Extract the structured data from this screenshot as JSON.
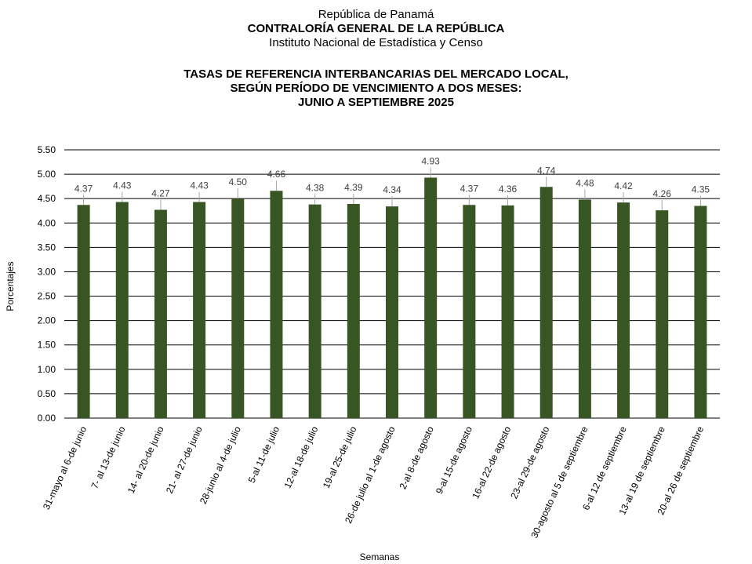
{
  "header": {
    "line1": "República de Panamá",
    "line2": "CONTRALORÍA GENERAL DE LA REPÚBLICA",
    "line3": "Instituto  Nacional de Estadística y Censo"
  },
  "chart_data": {
    "type": "bar",
    "title": [
      "TASAS DE REFERENCIA INTERBANCARIAS DEL MERCADO LOCAL,",
      "SEGÚN PERÍODO DE VENCIMIENTO A DOS MESES:",
      "JUNIO A  SEPTIEMBRE 2025"
    ],
    "xlabel": "Semanas",
    "ylabel": "Porcentajes",
    "ylim": [
      0,
      5.5
    ],
    "yticks": [
      "0.00",
      "0.50",
      "1.00",
      "1.50",
      "2.00",
      "2.50",
      "3.00",
      "3.50",
      "4.00",
      "4.50",
      "5.00",
      "5.50"
    ],
    "grid": true,
    "bar_color": "#375623",
    "categories": [
      "31-mayo al 6-de junio",
      "7- al 13-de junio",
      "14- al 20-de junio",
      "21- al 27-de junio",
      "28-junio al 4-de julio",
      "5-al 11-de julio",
      "12-al 18-de julio",
      "19-al 25-de julio",
      "26-de julio al 1-de agosto",
      "2-al 8-de agosto",
      "9-al 15-de agosto",
      "16-al 22-de agosto",
      "23-al 29-de agosto",
      "30-agosto al 5 de septiembre",
      "6-al 12 de septiembre",
      "13-al 19 de septiembre",
      "20-al 26 de septiembre"
    ],
    "values": [
      4.37,
      4.43,
      4.27,
      4.43,
      4.5,
      4.66,
      4.38,
      4.39,
      4.34,
      4.93,
      4.37,
      4.36,
      4.74,
      4.48,
      4.42,
      4.26,
      4.35
    ],
    "data_labels": [
      "4.37",
      "4.43",
      "4.27",
      "4.43",
      "4.50",
      "4.66",
      "4.38",
      "4.39",
      "4.34",
      "4.93",
      "4.37",
      "4.36",
      "4.74",
      "4.48",
      "4.42",
      "4.26",
      "4.35"
    ]
  }
}
